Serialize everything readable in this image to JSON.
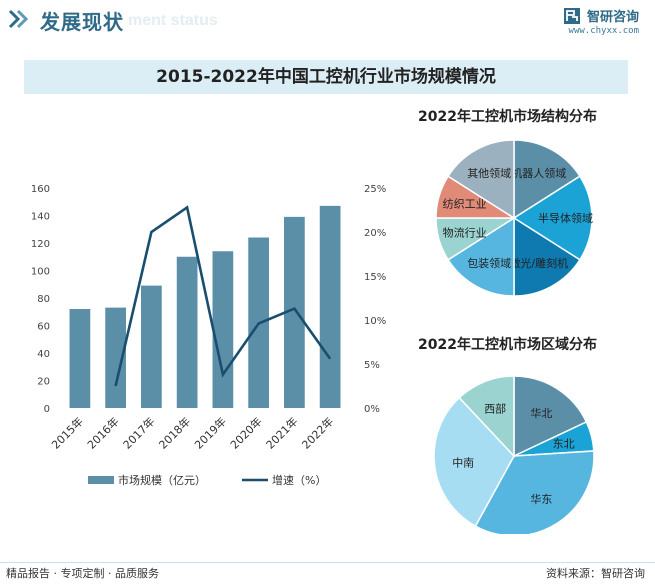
{
  "header": {
    "title": "发展现状",
    "subtitle_watermark": "ment status",
    "brand_name": "智研咨询",
    "brand_url": "www.chyxx.com"
  },
  "main_title": "2015-2022年中国工控机行业市场规模情况",
  "footer": {
    "left": "精品报告 · 专项定制 · 品质服务",
    "source": "资料来源：智研咨询"
  },
  "colors": {
    "bar": "#5b8fa8",
    "line": "#1a4e6e",
    "banner": "#dceef5"
  },
  "chart_data": [
    {
      "type": "bar+line",
      "categories": [
        "2015年",
        "2016年",
        "2017年",
        "2018年",
        "2019年",
        "2020年",
        "2021年",
        "2022年"
      ],
      "series": [
        {
          "name": "市场规模（亿元）",
          "type": "bar",
          "axis": "left",
          "values": [
            72,
            73,
            89,
            110,
            114,
            124,
            139,
            147
          ]
        },
        {
          "name": "增速（%）",
          "type": "line",
          "axis": "right",
          "values": [
            null,
            2.5,
            20,
            22.8,
            3.8,
            9.6,
            11.3,
            5.6
          ]
        }
      ],
      "left_axis": {
        "min": 0,
        "max": 160,
        "ticks": [
          "0",
          "20",
          "40",
          "60",
          "80",
          "100",
          "120",
          "140",
          "160"
        ]
      },
      "right_axis": {
        "min": 0,
        "max": 25,
        "ticks": [
          "0%",
          "5%",
          "10%",
          "15%",
          "20%",
          "25%"
        ]
      },
      "legend": "bottom"
    },
    {
      "type": "pie",
      "title": "2022年工控机市场结构分布",
      "slices": [
        {
          "label": "机器人领域",
          "value": 16,
          "color": "#5b8fa8"
        },
        {
          "label": "半导体领域",
          "value": 18,
          "color": "#1ba3d6"
        },
        {
          "label": "激光/雕刻机",
          "value": 16,
          "color": "#0e7ab0"
        },
        {
          "label": "包装领域",
          "value": 16,
          "color": "#56b6e0"
        },
        {
          "label": "物流行业",
          "value": 9,
          "color": "#9ad3cf"
        },
        {
          "label": "纺织工业",
          "value": 9,
          "color": "#e28a78"
        },
        {
          "label": "其他领域",
          "value": 16,
          "color": "#9bb1bf"
        }
      ]
    },
    {
      "type": "pie",
      "title": "2022年工控机市场区域分布",
      "slices": [
        {
          "label": "华北",
          "value": 18,
          "color": "#5b8fa8"
        },
        {
          "label": "东北",
          "value": 6,
          "color": "#1ba3d6"
        },
        {
          "label": "华东",
          "value": 34,
          "color": "#56b6e0"
        },
        {
          "label": "中南",
          "value": 30,
          "color": "#a7ddf2"
        },
        {
          "label": "西部",
          "value": 12,
          "color": "#9ad3cf"
        }
      ]
    }
  ]
}
